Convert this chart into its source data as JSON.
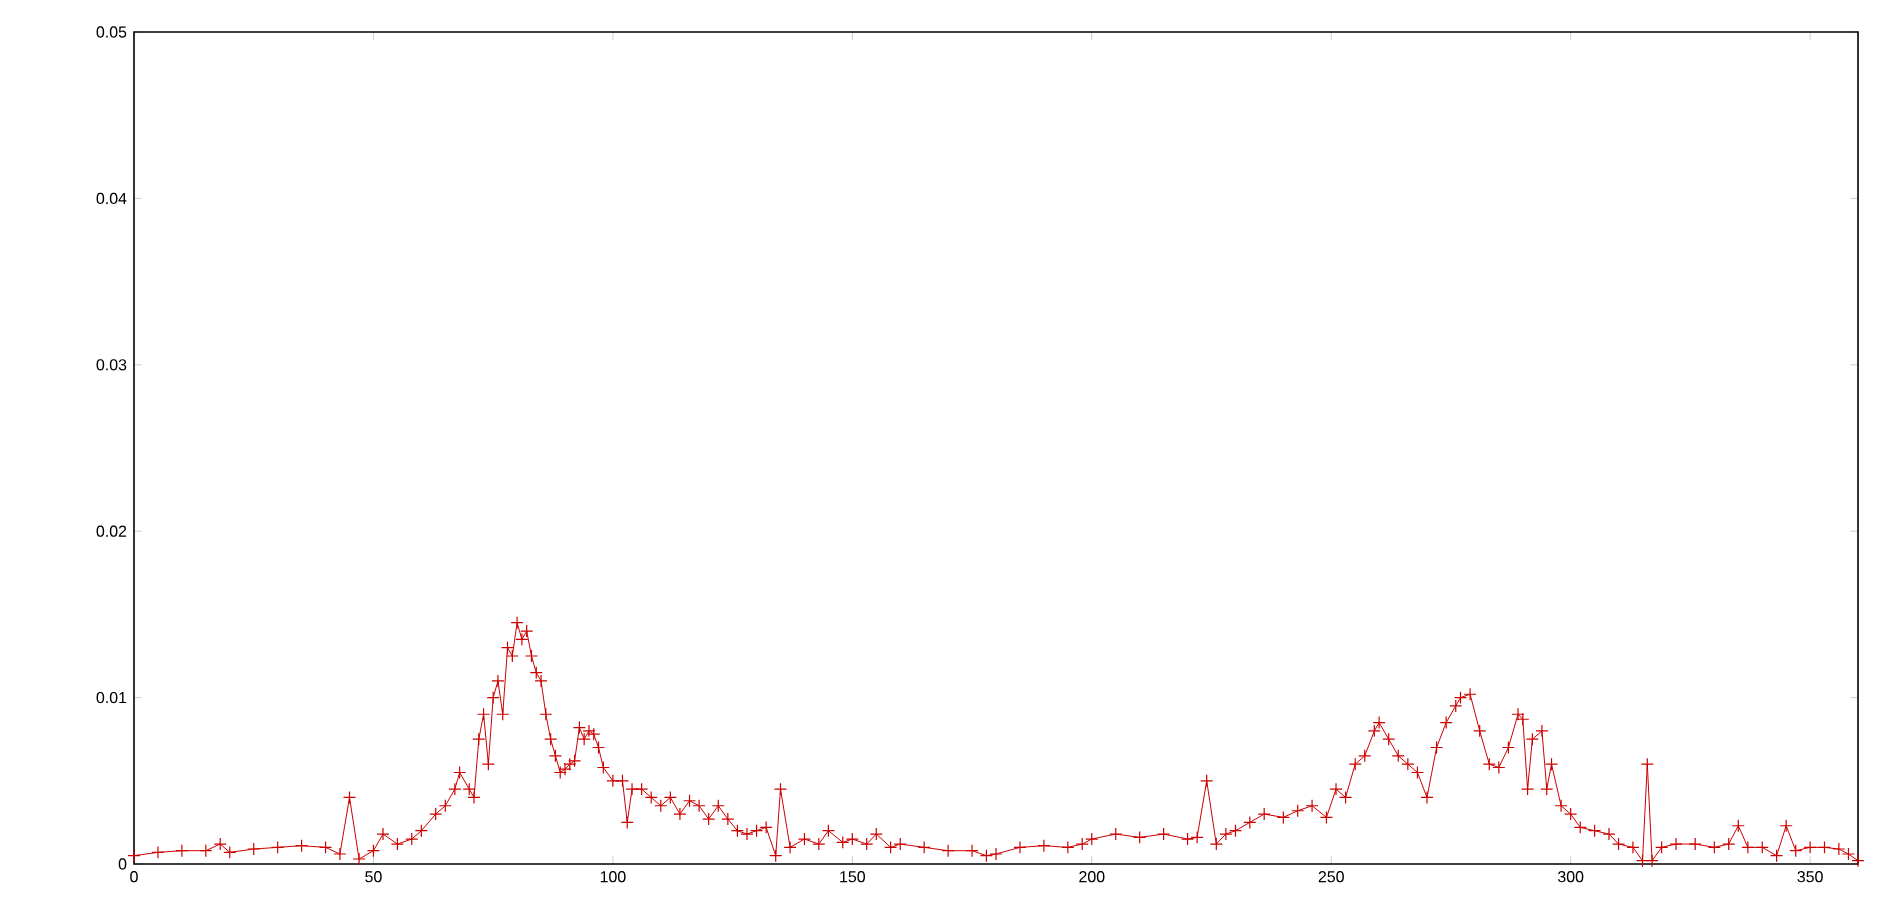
{
  "chart_data": {
    "type": "line",
    "x": [
      0,
      5,
      10,
      15,
      18,
      20,
      25,
      30,
      35,
      40,
      43,
      45,
      47,
      50,
      52,
      55,
      58,
      60,
      63,
      65,
      67,
      68,
      70,
      71,
      72,
      73,
      74,
      75,
      76,
      77,
      78,
      79,
      80,
      81,
      82,
      83,
      84,
      85,
      86,
      87,
      88,
      89,
      90,
      91,
      92,
      93,
      94,
      95,
      96,
      97,
      98,
      100,
      102,
      103,
      104,
      106,
      108,
      110,
      112,
      114,
      116,
      118,
      120,
      122,
      124,
      126,
      128,
      130,
      132,
      134,
      135,
      137,
      140,
      143,
      145,
      148,
      150,
      153,
      155,
      158,
      160,
      165,
      170,
      175,
      178,
      180,
      185,
      190,
      195,
      198,
      200,
      205,
      210,
      215,
      220,
      222,
      224,
      226,
      228,
      230,
      233,
      236,
      240,
      243,
      246,
      249,
      251,
      253,
      255,
      257,
      259,
      260,
      262,
      264,
      266,
      268,
      270,
      272,
      274,
      276,
      277,
      279,
      281,
      283,
      285,
      287,
      289,
      290,
      291,
      292,
      294,
      295,
      296,
      298,
      300,
      302,
      305,
      308,
      310,
      313,
      315,
      316,
      317,
      319,
      322,
      326,
      330,
      333,
      335,
      337,
      340,
      343,
      345,
      347,
      350,
      353,
      356,
      358,
      360
    ],
    "values": [
      0.0005,
      0.0007,
      0.0008,
      0.0008,
      0.0012,
      0.0007,
      0.0009,
      0.001,
      0.0011,
      0.001,
      0.0006,
      0.004,
      0.0003,
      0.0008,
      0.0018,
      0.0012,
      0.0015,
      0.002,
      0.003,
      0.0035,
      0.0045,
      0.0055,
      0.0045,
      0.004,
      0.0075,
      0.009,
      0.006,
      0.01,
      0.011,
      0.009,
      0.013,
      0.0125,
      0.0145,
      0.0135,
      0.014,
      0.0125,
      0.0115,
      0.011,
      0.009,
      0.0075,
      0.0065,
      0.0055,
      0.0057,
      0.006,
      0.0062,
      0.0082,
      0.0075,
      0.008,
      0.0078,
      0.007,
      0.0058,
      0.005,
      0.005,
      0.0025,
      0.0045,
      0.0045,
      0.004,
      0.0035,
      0.004,
      0.003,
      0.0038,
      0.0035,
      0.0027,
      0.0035,
      0.0027,
      0.002,
      0.0018,
      0.002,
      0.0022,
      0.0005,
      0.0045,
      0.001,
      0.0015,
      0.0012,
      0.002,
      0.0013,
      0.0015,
      0.0012,
      0.0018,
      0.001,
      0.0012,
      0.001,
      0.0008,
      0.0008,
      0.0005,
      0.0006,
      0.001,
      0.0011,
      0.001,
      0.0012,
      0.0015,
      0.0018,
      0.0016,
      0.0018,
      0.0015,
      0.0016,
      0.005,
      0.0012,
      0.0018,
      0.002,
      0.0025,
      0.003,
      0.0028,
      0.0032,
      0.0035,
      0.0028,
      0.0045,
      0.004,
      0.006,
      0.0065,
      0.008,
      0.0085,
      0.0075,
      0.0065,
      0.006,
      0.0055,
      0.004,
      0.007,
      0.0085,
      0.0095,
      0.01,
      0.0102,
      0.008,
      0.006,
      0.0058,
      0.007,
      0.009,
      0.0087,
      0.0045,
      0.0075,
      0.008,
      0.0045,
      0.006,
      0.0035,
      0.003,
      0.0022,
      0.002,
      0.0018,
      0.0012,
      0.001,
      0.0002,
      0.006,
      0.0002,
      0.001,
      0.0012,
      0.0012,
      0.001,
      0.0012,
      0.0023,
      0.001,
      0.001,
      0.0005,
      0.0023,
      0.0008,
      0.001,
      0.001,
      0.0009,
      0.0006,
      0.0002
    ],
    "color": "#cc0000",
    "marker": "cross",
    "xlim": [
      0,
      360
    ],
    "xticks": [
      0,
      50,
      100,
      150,
      200,
      250,
      300,
      350
    ],
    "ylim": [
      0,
      0.05
    ],
    "yticks": [
      0,
      0.01,
      0.02,
      0.03,
      0.04,
      0.05
    ]
  }
}
